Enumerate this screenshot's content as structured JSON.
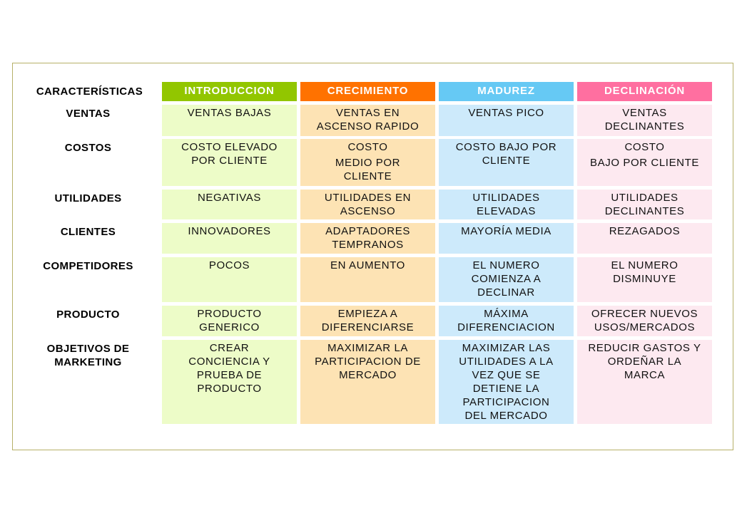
{
  "corner_label": "CARACTERÍSTICAS",
  "stages": [
    {
      "label": "INTRODUCCION",
      "color": "#92c600"
    },
    {
      "label": "CRECIMIENTO",
      "color": "#ff7200"
    },
    {
      "label": "MADUREZ",
      "color": "#66c9f4"
    },
    {
      "label": "DECLINACIÓN",
      "color": "#ff6fa0"
    }
  ],
  "rows": [
    {
      "label": [
        "VENTAS"
      ],
      "cells": [
        [
          "VENTAS BAJAS"
        ],
        [
          "VENTAS EN",
          "ASCENSO RAPIDO"
        ],
        [
          "VENTAS PICO"
        ],
        [
          "VENTAS",
          "DECLINANTES"
        ]
      ]
    },
    {
      "label": [
        "COSTOS"
      ],
      "cells": [
        [
          "COSTO ELEVADO",
          "POR CLIENTE"
        ],
        [
          "COSTO",
          "MEDIO POR",
          "CLIENTE"
        ],
        [
          "COSTO BAJO POR",
          "CLIENTE"
        ],
        [
          "COSTO",
          "BAJO POR CLIENTE"
        ]
      ]
    },
    {
      "label": [
        "UTILIDADES"
      ],
      "cells": [
        [
          "NEGATIVAS"
        ],
        [
          "UTILIDADES EN",
          "ASCENSO"
        ],
        [
          "UTILIDADES",
          "ELEVADAS"
        ],
        [
          "UTILIDADES",
          "DECLINANTES"
        ]
      ]
    },
    {
      "label": [
        "CLIENTES"
      ],
      "cells": [
        [
          "INNOVADORES"
        ],
        [
          "ADAPTADORES",
          "TEMPRANOS"
        ],
        [
          "MAYORÍA MEDIA"
        ],
        [
          "REZAGADOS"
        ]
      ]
    },
    {
      "label": [
        "COMPETIDORES"
      ],
      "cells": [
        [
          "POCOS"
        ],
        [
          "EN AUMENTO"
        ],
        [
          "EL NUMERO",
          "COMIENZA A",
          "DECLINAR"
        ],
        [
          "EL NUMERO",
          "DISMINUYE"
        ]
      ]
    },
    {
      "label": [
        "PRODUCTO"
      ],
      "cells": [
        [
          "PRODUCTO",
          "GENERICO"
        ],
        [
          "EMPIEZA A",
          "DIFERENCIARSE"
        ],
        [
          "MÁXIMA",
          "DIFERENCIACION"
        ],
        [
          "OFRECER NUEVOS",
          "USOS/MERCADOS"
        ]
      ]
    },
    {
      "label": [
        "OBJETIVOS DE",
        "MARKETING"
      ],
      "cells": [
        [
          "CREAR",
          "CONCIENCIA Y",
          "PRUEBA DE",
          "PRODUCTO"
        ],
        [
          "MAXIMIZAR LA",
          "PARTICIPACION DE",
          "MERCADO"
        ],
        [
          "MAXIMIZAR LAS",
          "UTILIDADES A LA",
          "VEZ QUE SE",
          "DETIENE LA",
          "PARTICIPACION",
          "DEL MERCADO"
        ],
        [
          "REDUCIR GASTOS Y",
          "ORDEÑAR LA",
          "MARCA"
        ]
      ]
    }
  ]
}
